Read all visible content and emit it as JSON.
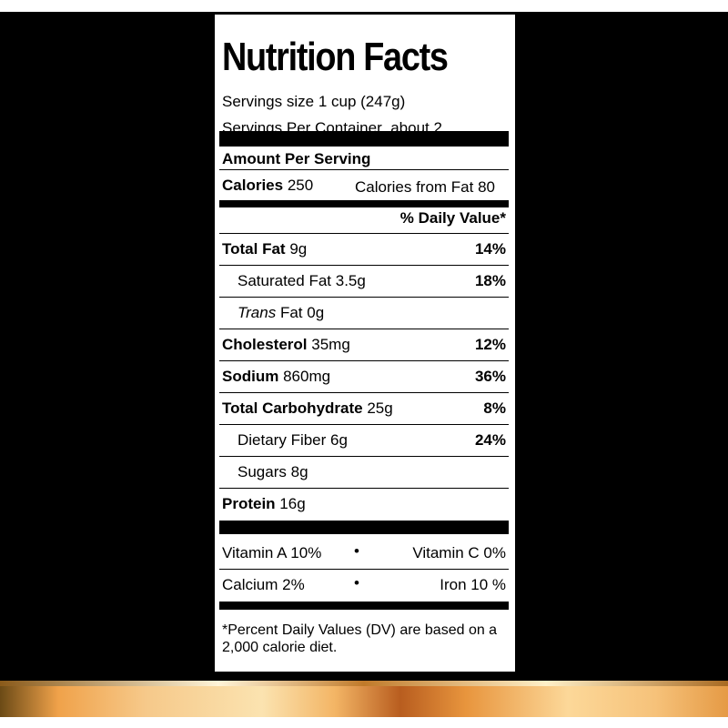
{
  "label": {
    "title": "Nutrition Facts",
    "serving_size": "Servings size 1 cup (247g)",
    "servings_per_container": "Servings Per Container  about 2",
    "amount_per_serving": "Amount Per Serving",
    "calories_label": "Calories",
    "calories_value": "250",
    "calories_from_fat": "Calories from Fat 80",
    "daily_value_header": "% Daily Value*",
    "nutrients": [
      {
        "name": "Total Fat",
        "amount": "9g",
        "dv": "14%"
      },
      {
        "name": "Saturated Fat",
        "amount": "3.5g",
        "dv": "18%"
      },
      {
        "name": "Trans",
        "name_suffix": "Fat",
        "amount": "0g",
        "dv": ""
      },
      {
        "name": "Cholesterol",
        "amount": "35mg",
        "dv": "12%"
      },
      {
        "name": "Sodium",
        "amount": "860mg",
        "dv": "36%"
      },
      {
        "name": "Total Carbohydrate",
        "amount": "25g",
        "dv": "8%"
      },
      {
        "name": "Dietary Fiber",
        "amount": "6g",
        "dv": "24%"
      },
      {
        "name": "Sugars",
        "amount": "8g",
        "dv": ""
      },
      {
        "name": "Protein",
        "amount": "16g",
        "dv": ""
      }
    ],
    "vitamins": [
      {
        "left": "Vitamin A 10%",
        "bullet": "•",
        "right": "Vitamin C 0%"
      },
      {
        "left": "Calcium 2%",
        "bullet": "•",
        "right": "Iron 10 %"
      }
    ],
    "footnote": "*Percent Daily Values (DV) are based on a 2,000 calorie diet."
  }
}
